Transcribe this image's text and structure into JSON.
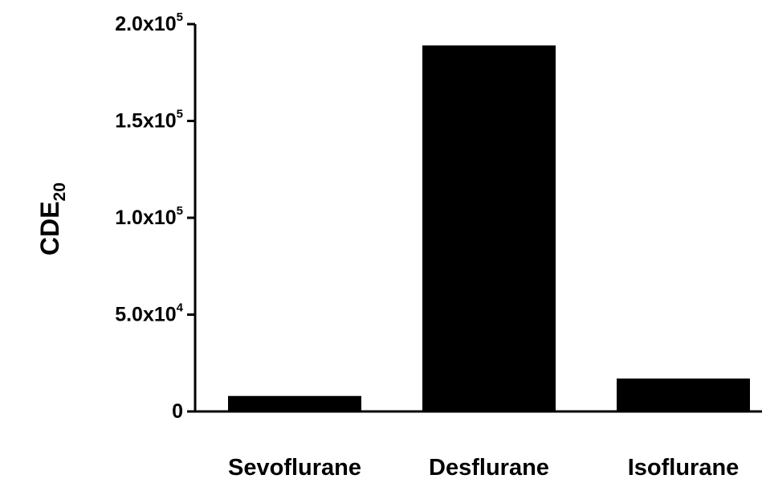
{
  "chart_data": {
    "type": "bar",
    "categories": [
      "Sevoflurane",
      "Desflurane",
      "Isoflurane"
    ],
    "values": [
      8000,
      189000,
      17000
    ],
    "ylabel": {
      "base": "CDE",
      "subscript": "20"
    },
    "xlabel": "",
    "ylim": [
      0,
      200000
    ],
    "yticks": [
      {
        "value": 0,
        "mantissa": "0",
        "exponent": ""
      },
      {
        "value": 50000,
        "mantissa": "5.0x10",
        "exponent": "4"
      },
      {
        "value": 100000,
        "mantissa": "1.0x10",
        "exponent": "5"
      },
      {
        "value": 150000,
        "mantissa": "1.5x10",
        "exponent": "5"
      },
      {
        "value": 200000,
        "mantissa": "2.0x10",
        "exponent": "5"
      }
    ],
    "grid": false,
    "bar_color": "#000000",
    "axis_color": "#000000"
  }
}
